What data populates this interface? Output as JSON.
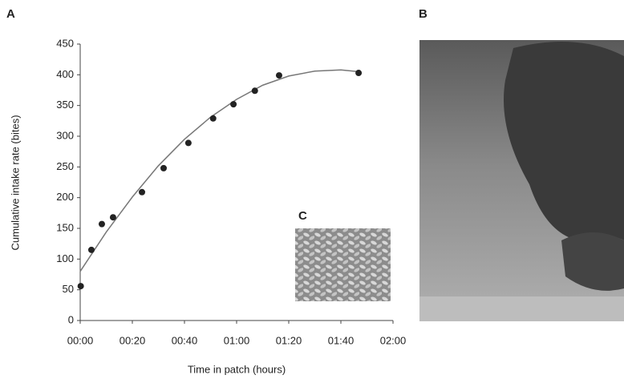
{
  "chart_data": {
    "type": "scatter",
    "panel_label": "A",
    "xlabel": "Time in patch (hours)",
    "ylabel": "Cumulative intake rate (bites)",
    "xlim": [
      0,
      120
    ],
    "ylim": [
      0,
      450
    ],
    "xticks": [
      {
        "value": 0,
        "label": "00:00"
      },
      {
        "value": 20,
        "label": "00:20"
      },
      {
        "value": 40,
        "label": "00:40"
      },
      {
        "value": 60,
        "label": "01:00"
      },
      {
        "value": 80,
        "label": "01:20"
      },
      {
        "value": 100,
        "label": "01:40"
      },
      {
        "value": 120,
        "label": "02:00"
      }
    ],
    "yticks": [
      0,
      50,
      100,
      150,
      200,
      250,
      300,
      350,
      400,
      450
    ],
    "grid": false,
    "series": [
      {
        "type": "scatter",
        "color": "#222222",
        "x": [
          0.2,
          4.3,
          8.3,
          12.6,
          23.7,
          32,
          41.5,
          51,
          58.8,
          67,
          76.3,
          106.8
        ],
        "values": [
          56,
          115,
          157,
          168,
          209,
          248,
          289,
          329,
          352,
          374,
          399,
          403
        ]
      },
      {
        "type": "line",
        "color": "#777777",
        "x": [
          0,
          10,
          20,
          30,
          40,
          50,
          60,
          70,
          80,
          90,
          100,
          107
        ],
        "values": [
          80,
          144,
          201,
          252,
          295,
          331,
          360,
          383,
          398,
          406,
          408,
          405
        ]
      }
    ]
  },
  "images": [
    {
      "label": "B"
    },
    {
      "label": "C"
    }
  ]
}
